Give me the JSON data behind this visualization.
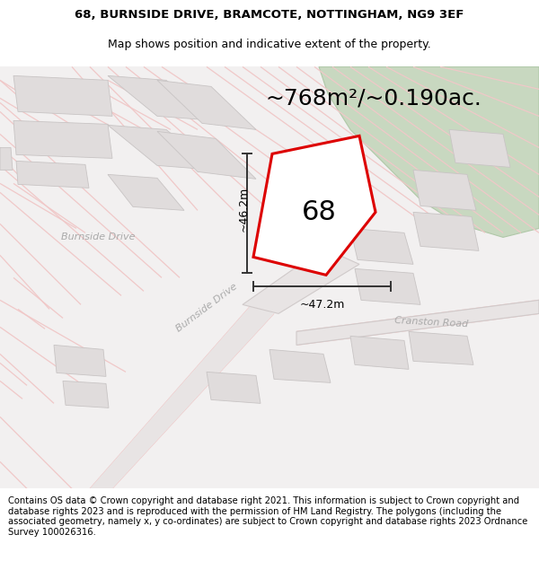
{
  "title_line1": "68, BURNSIDE DRIVE, BRAMCOTE, NOTTINGHAM, NG9 3EF",
  "title_line2": "Map shows position and indicative extent of the property.",
  "footer_text": "Contains OS data © Crown copyright and database right 2021. This information is subject to Crown copyright and database rights 2023 and is reproduced with the permission of HM Land Registry. The polygons (including the associated geometry, namely x, y co-ordinates) are subject to Crown copyright and database rights 2023 Ordnance Survey 100026316.",
  "area_label": "~768m²/~0.190ac.",
  "number_label": "68",
  "dim_vertical": "~46.2m",
  "dim_horizontal": "~47.2m",
  "road_label_burnside_diag": "Burnside Drive",
  "road_label_cranston": "Cranston Road",
  "map_bg": "#f2f0f0",
  "plot_fill": "#ffffff",
  "plot_stroke": "#dd0000",
  "green_fill": "#c8d8c0",
  "green_edge": "#b0c8a8",
  "road_fill": "#e8e4e4",
  "road_edge": "#d0caca",
  "road_line_color": "#f0c8c8",
  "block_fill": "#e0dcdc",
  "block_edge": "#c8c4c4",
  "dim_line_color": "#333333",
  "road_label_color": "#aaaaaa",
  "title_fontsize": 9.5,
  "footer_fontsize": 7.2,
  "number_fontsize": 22,
  "area_fontsize": 18,
  "dim_fontsize": 9,
  "road_label_fontsize": 8
}
